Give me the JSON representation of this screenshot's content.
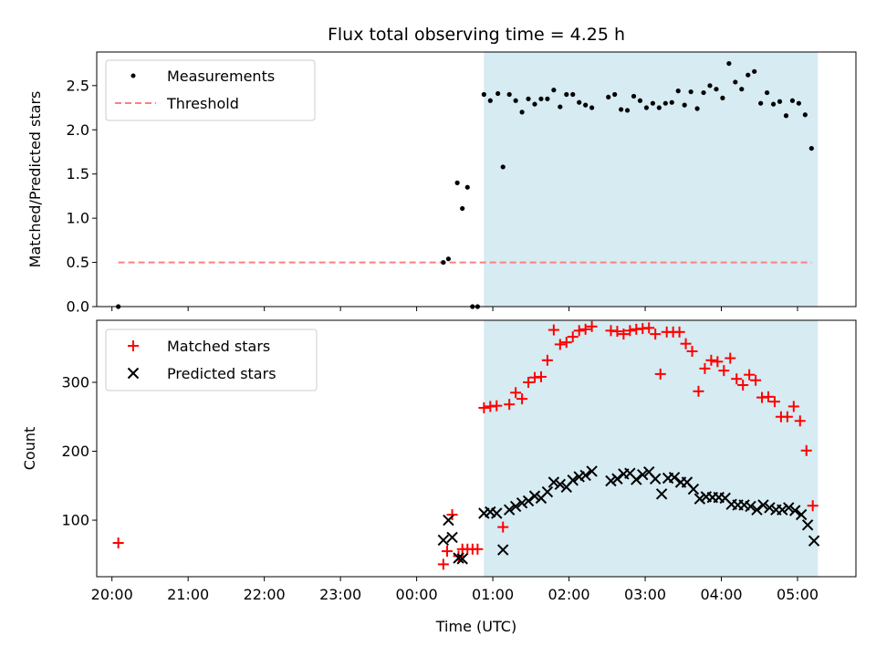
{
  "chart_data": [
    {
      "type": "scatter",
      "title": "Flux total observing time = 4.25 h",
      "xlabel": "",
      "ylabel": "Matched/Predicted stars",
      "xlim": [
        "19:48",
        "05:46"
      ],
      "ylim": [
        0,
        2.88
      ],
      "yticks": [
        "0.0",
        "0.5",
        "1.0",
        "1.5",
        "2.0",
        "2.5"
      ],
      "observing_window": [
        "00:53",
        "05:16"
      ],
      "legend": {
        "placement": "top-left",
        "entries": [
          "Measurements",
          "Threshold"
        ]
      },
      "series": [
        {
          "name": "Measurements",
          "color": "#000000",
          "marker": "dot",
          "points": [
            [
              "20:05",
              0.0
            ],
            [
              "00:21",
              0.5
            ],
            [
              "00:25",
              0.54
            ],
            [
              "00:32",
              1.4
            ],
            [
              "00:36",
              1.11
            ],
            [
              "00:40",
              1.35
            ],
            [
              "00:44",
              0.0
            ],
            [
              "00:48",
              0.0
            ],
            [
              "00:53",
              2.4
            ],
            [
              "00:58",
              2.33
            ],
            [
              "01:04",
              2.41
            ],
            [
              "01:08",
              1.58
            ],
            [
              "01:13",
              2.4
            ],
            [
              "01:18",
              2.33
            ],
            [
              "01:23",
              2.2
            ],
            [
              "01:28",
              2.35
            ],
            [
              "01:33",
              2.29
            ],
            [
              "01:38",
              2.35
            ],
            [
              "01:43",
              2.35
            ],
            [
              "01:48",
              2.45
            ],
            [
              "01:53",
              2.26
            ],
            [
              "01:58",
              2.4
            ],
            [
              "02:03",
              2.4
            ],
            [
              "02:08",
              2.31
            ],
            [
              "02:13",
              2.28
            ],
            [
              "02:18",
              2.25
            ],
            [
              "02:31",
              2.37
            ],
            [
              "02:36",
              2.4
            ],
            [
              "02:41",
              2.23
            ],
            [
              "02:46",
              2.22
            ],
            [
              "02:51",
              2.38
            ],
            [
              "02:56",
              2.33
            ],
            [
              "03:01",
              2.25
            ],
            [
              "03:06",
              2.3
            ],
            [
              "03:11",
              2.25
            ],
            [
              "03:16",
              2.3
            ],
            [
              "03:21",
              2.31
            ],
            [
              "03:26",
              2.44
            ],
            [
              "03:31",
              2.28
            ],
            [
              "03:36",
              2.43
            ],
            [
              "03:41",
              2.24
            ],
            [
              "03:46",
              2.42
            ],
            [
              "03:51",
              2.5
            ],
            [
              "03:56",
              2.46
            ],
            [
              "04:01",
              2.36
            ],
            [
              "04:06",
              2.75
            ],
            [
              "04:11",
              2.54
            ],
            [
              "04:16",
              2.46
            ],
            [
              "04:21",
              2.62
            ],
            [
              "04:26",
              2.66
            ],
            [
              "04:31",
              2.3
            ],
            [
              "04:36",
              2.42
            ],
            [
              "04:41",
              2.29
            ],
            [
              "04:46",
              2.32
            ],
            [
              "04:51",
              2.16
            ],
            [
              "04:56",
              2.33
            ],
            [
              "05:01",
              2.3
            ],
            [
              "05:06",
              2.17
            ],
            [
              "05:11",
              1.79
            ]
          ]
        },
        {
          "name": "Threshold",
          "color": "#ff7f7f",
          "style": "dashed",
          "points": [
            [
              "20:05",
              0.5
            ],
            [
              "05:11",
              0.5
            ]
          ]
        }
      ]
    },
    {
      "type": "scatter",
      "title": "",
      "xlabel": "Time (UTC)",
      "ylabel": "Count",
      "xlim": [
        "19:48",
        "05:46"
      ],
      "ylim": [
        18,
        390
      ],
      "yticks": [
        "100",
        "200",
        "300"
      ],
      "xticks": [
        "20:00",
        "21:00",
        "22:00",
        "23:00",
        "00:00",
        "01:00",
        "02:00",
        "03:00",
        "04:00",
        "05:00"
      ],
      "observing_window": [
        "00:53",
        "05:16"
      ],
      "legend": {
        "placement": "top-left",
        "entries": [
          "Matched stars",
          "Predicted stars"
        ]
      },
      "series": [
        {
          "name": "Matched stars",
          "color": "#ff0000",
          "marker": "plus",
          "points": [
            [
              "20:05",
              67
            ],
            [
              "00:21",
              36
            ],
            [
              "00:24",
              55
            ],
            [
              "00:28",
              108
            ],
            [
              "00:33",
              48
            ],
            [
              "00:36",
              58
            ],
            [
              "00:40",
              58
            ],
            [
              "00:44",
              58
            ],
            [
              "00:48",
              58
            ],
            [
              "00:53",
              263
            ],
            [
              "00:58",
              265
            ],
            [
              "01:03",
              266
            ],
            [
              "01:08",
              90
            ],
            [
              "01:13",
              268
            ],
            [
              "01:18",
              285
            ],
            [
              "01:23",
              276
            ],
            [
              "01:28",
              300
            ],
            [
              "01:33",
              307
            ],
            [
              "01:38",
              308
            ],
            [
              "01:43",
              332
            ],
            [
              "01:48",
              376
            ],
            [
              "01:53",
              355
            ],
            [
              "01:58",
              358
            ],
            [
              "02:03",
              366
            ],
            [
              "02:08",
              375
            ],
            [
              "02:13",
              377
            ],
            [
              "02:18",
              381
            ],
            [
              "02:33",
              375
            ],
            [
              "02:38",
              374
            ],
            [
              "02:43",
              370
            ],
            [
              "02:48",
              375
            ],
            [
              "02:53",
              377
            ],
            [
              "02:58",
              378
            ],
            [
              "03:03",
              379
            ],
            [
              "03:08",
              370
            ],
            [
              "03:12",
              312
            ],
            [
              "03:17",
              373
            ],
            [
              "03:22",
              373
            ],
            [
              "03:27",
              373
            ],
            [
              "03:32",
              356
            ],
            [
              "03:37",
              345
            ],
            [
              "03:42",
              287
            ],
            [
              "03:47",
              320
            ],
            [
              "03:52",
              332
            ],
            [
              "03:57",
              330
            ],
            [
              "04:02",
              317
            ],
            [
              "04:07",
              335
            ],
            [
              "04:12",
              305
            ],
            [
              "04:17",
              296
            ],
            [
              "04:22",
              311
            ],
            [
              "04:27",
              303
            ],
            [
              "04:32",
              278
            ],
            [
              "04:37",
              279
            ],
            [
              "04:42",
              272
            ],
            [
              "04:47",
              250
            ],
            [
              "04:52",
              250
            ],
            [
              "04:57",
              265
            ],
            [
              "05:02",
              244
            ],
            [
              "05:07",
              201
            ],
            [
              "05:12",
              121
            ]
          ]
        },
        {
          "name": "Predicted stars",
          "color": "#000000",
          "marker": "x",
          "points": [
            [
              "00:21",
              71
            ],
            [
              "00:25",
              100
            ],
            [
              "00:28",
              75
            ],
            [
              "00:33",
              45
            ],
            [
              "00:36",
              44
            ],
            [
              "00:53",
              110
            ],
            [
              "00:58",
              112
            ],
            [
              "01:03",
              110
            ],
            [
              "01:08",
              57
            ],
            [
              "01:13",
              115
            ],
            [
              "01:18",
              120
            ],
            [
              "01:23",
              125
            ],
            [
              "01:28",
              128
            ],
            [
              "01:33",
              135
            ],
            [
              "01:38",
              132
            ],
            [
              "01:43",
              141
            ],
            [
              "01:48",
              155
            ],
            [
              "01:53",
              152
            ],
            [
              "01:58",
              148
            ],
            [
              "02:03",
              158
            ],
            [
              "02:08",
              163
            ],
            [
              "02:13",
              165
            ],
            [
              "02:18",
              171
            ],
            [
              "02:33",
              157
            ],
            [
              "02:38",
              160
            ],
            [
              "02:43",
              167
            ],
            [
              "02:48",
              168
            ],
            [
              "02:53",
              159
            ],
            [
              "02:58",
              166
            ],
            [
              "03:03",
              170
            ],
            [
              "03:08",
              160
            ],
            [
              "03:13",
              138
            ],
            [
              "03:18",
              161
            ],
            [
              "03:23",
              162
            ],
            [
              "03:28",
              155
            ],
            [
              "03:33",
              155
            ],
            [
              "03:38",
              145
            ],
            [
              "03:43",
              131
            ],
            [
              "03:48",
              134
            ],
            [
              "03:53",
              133
            ],
            [
              "03:58",
              133
            ],
            [
              "04:03",
              132
            ],
            [
              "04:08",
              123
            ],
            [
              "04:13",
              122
            ],
            [
              "04:18",
              122
            ],
            [
              "04:23",
              120
            ],
            [
              "04:28",
              115
            ],
            [
              "04:33",
              122
            ],
            [
              "04:38",
              118
            ],
            [
              "04:43",
              115
            ],
            [
              "04:48",
              115
            ],
            [
              "04:53",
              118
            ],
            [
              "04:58",
              114
            ],
            [
              "05:03",
              108
            ],
            [
              "05:08",
              93
            ],
            [
              "05:13",
              70
            ]
          ]
        }
      ]
    }
  ]
}
